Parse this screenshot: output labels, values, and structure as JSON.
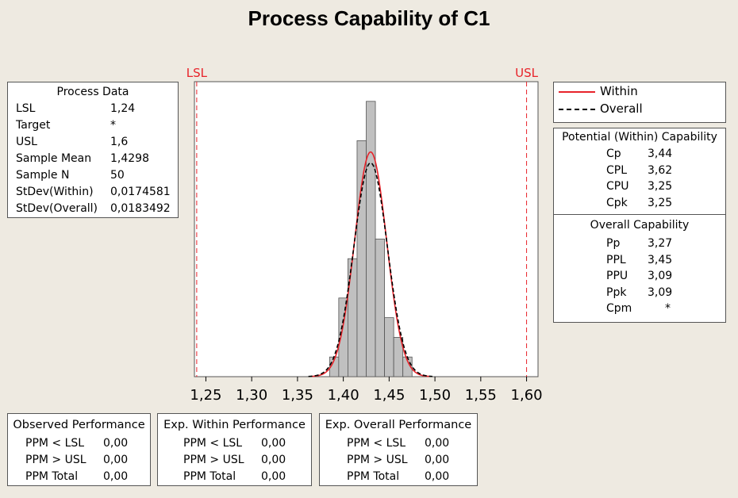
{
  "title": "Process Capability of C1",
  "process_data": {
    "header": "Process Data",
    "rows": [
      {
        "label": "LSL",
        "value": "1,24"
      },
      {
        "label": "Target",
        "value": "*"
      },
      {
        "label": "USL",
        "value": "1,6"
      },
      {
        "label": "Sample Mean",
        "value": "1,4298"
      },
      {
        "label": "Sample N",
        "value": "50"
      },
      {
        "label": "StDev(Within)",
        "value": "0,0174581"
      },
      {
        "label": "StDev(Overall)",
        "value": "0,0183492"
      }
    ]
  },
  "legend": {
    "within": "Within",
    "overall": "Overall"
  },
  "potential": {
    "header": "Potential (Within) Capability",
    "rows": [
      {
        "label": "Cp",
        "value": "3,44"
      },
      {
        "label": "CPL",
        "value": "3,62"
      },
      {
        "label": "CPU",
        "value": "3,25"
      },
      {
        "label": "Cpk",
        "value": "3,25"
      }
    ]
  },
  "overall_cap": {
    "header": "Overall Capability",
    "rows": [
      {
        "label": "Pp",
        "value": "3,27"
      },
      {
        "label": "PPL",
        "value": "3,45"
      },
      {
        "label": "PPU",
        "value": "3,09"
      },
      {
        "label": "Ppk",
        "value": "3,09"
      },
      {
        "label": "Cpm",
        "value": "*"
      }
    ]
  },
  "observed": {
    "header": "Observed Performance",
    "rows": [
      {
        "label": "PPM < LSL",
        "value": "0,00"
      },
      {
        "label": "PPM > USL",
        "value": "0,00"
      },
      {
        "label": "PPM Total",
        "value": "0,00"
      }
    ]
  },
  "exp_within": {
    "header": "Exp. Within Performance",
    "rows": [
      {
        "label": "PPM < LSL",
        "value": "0,00"
      },
      {
        "label": "PPM > USL",
        "value": "0,00"
      },
      {
        "label": "PPM Total",
        "value": "0,00"
      }
    ]
  },
  "exp_overall": {
    "header": "Exp. Overall Performance",
    "rows": [
      {
        "label": "PPM < LSL",
        "value": "0,00"
      },
      {
        "label": "PPM > USL",
        "value": "0,00"
      },
      {
        "label": "PPM Total",
        "value": "0,00"
      }
    ]
  },
  "chart_data": {
    "type": "bar",
    "subtype": "histogram-with-normal-curves",
    "xlim": [
      1.2375,
      1.6125
    ],
    "x_ticks": [
      "1,25",
      "1,30",
      "1,35",
      "1,40",
      "1,45",
      "1,50",
      "1,55",
      "1,60"
    ],
    "x_tick_values": [
      1.25,
      1.3,
      1.35,
      1.4,
      1.45,
      1.5,
      1.55,
      1.6
    ],
    "bin_width": 0.01,
    "bins": [
      {
        "start": 1.385,
        "count": 1
      },
      {
        "start": 1.395,
        "count": 4
      },
      {
        "start": 1.405,
        "count": 6
      },
      {
        "start": 1.415,
        "count": 12
      },
      {
        "start": 1.425,
        "count": 14
      },
      {
        "start": 1.435,
        "count": 7
      },
      {
        "start": 1.445,
        "count": 3
      },
      {
        "start": 1.455,
        "count": 2
      },
      {
        "start": 1.465,
        "count": 1
      }
    ],
    "ylim": [
      0,
      15
    ],
    "spec_limits": {
      "LSL": 1.24,
      "USL": 1.6,
      "lsl_label": "LSL",
      "usl_label": "USL"
    },
    "sample_n": 50,
    "mean": 1.4298,
    "series": [
      {
        "name": "Within",
        "stdev": 0.0174581,
        "color": "#E8232A",
        "style": "solid"
      },
      {
        "name": "Overall",
        "stdev": 0.0183492,
        "color": "#000000",
        "style": "dashed"
      }
    ],
    "bar_color": "#C0C0C0",
    "grid": false
  }
}
